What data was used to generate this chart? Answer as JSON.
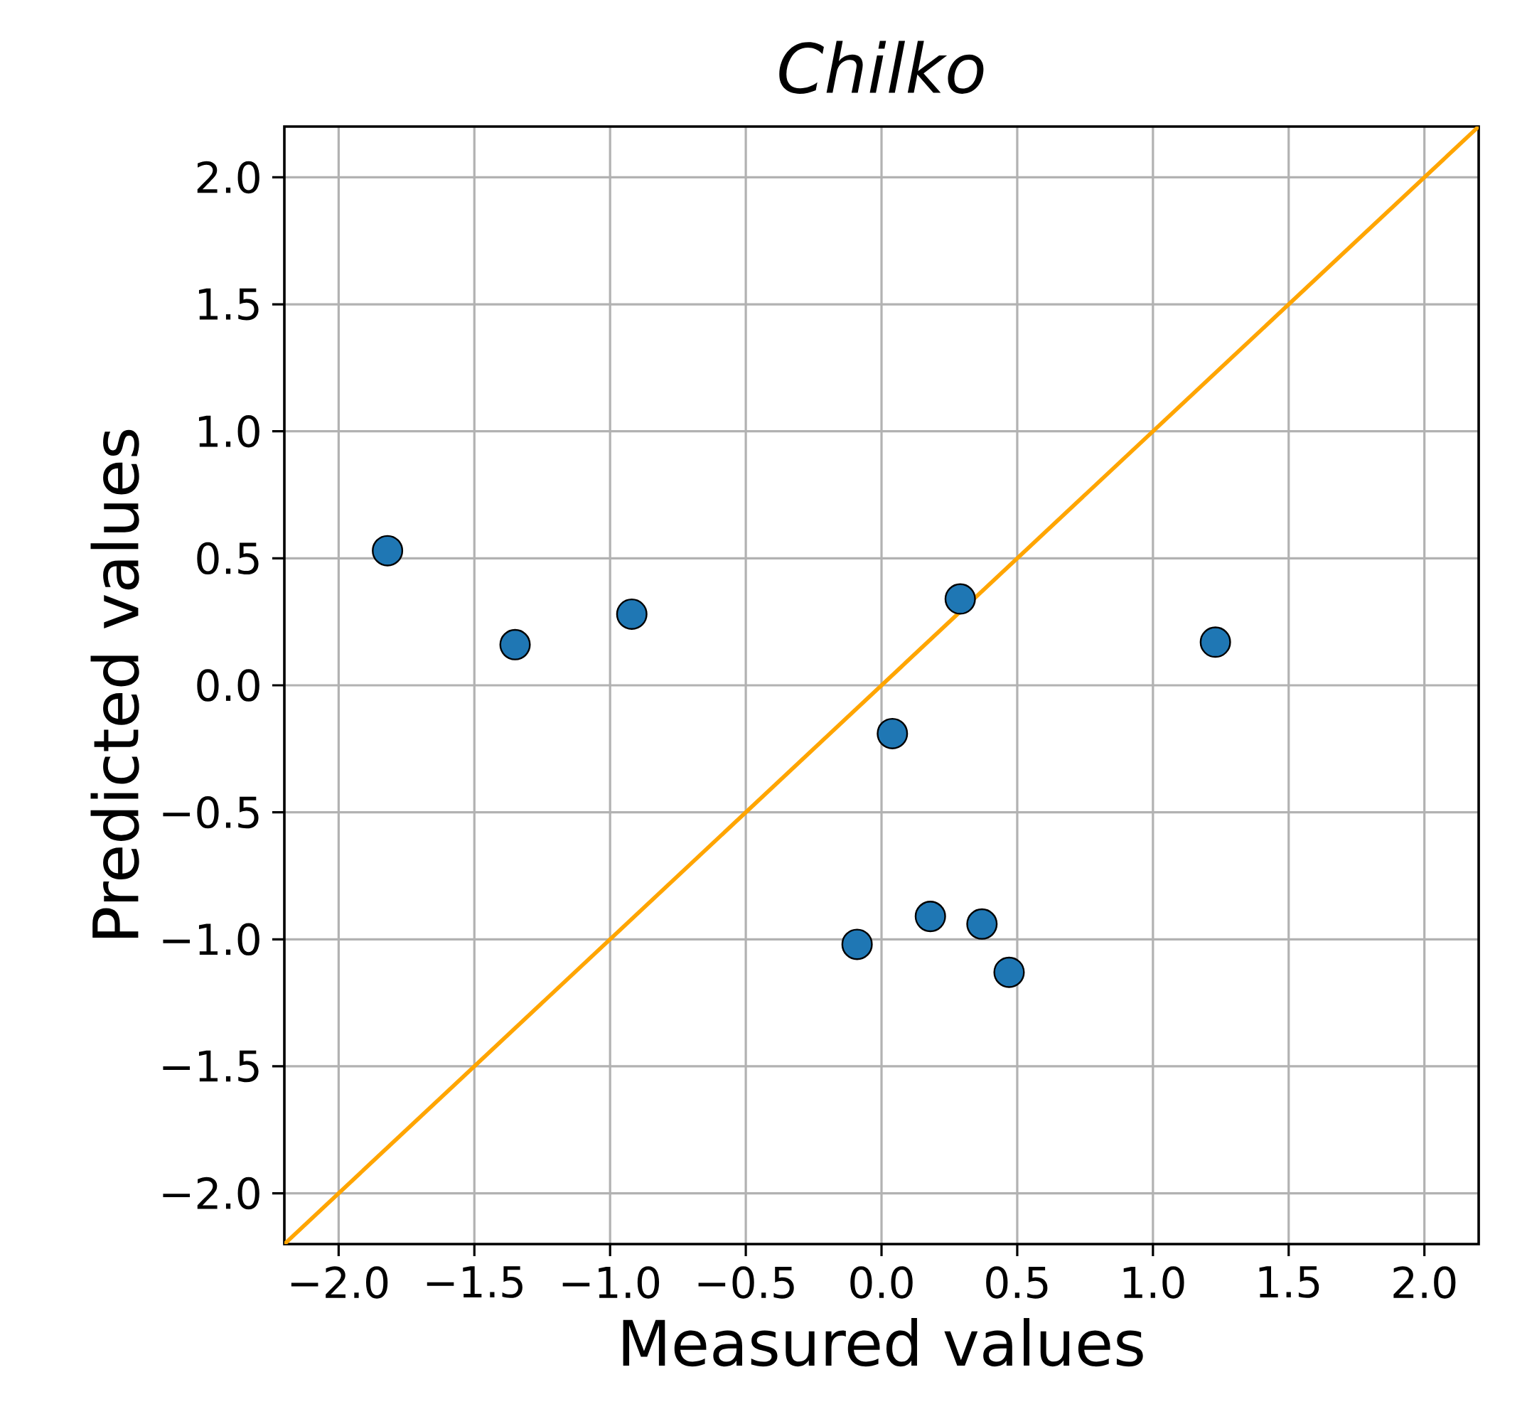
{
  "chart_data": {
    "type": "scatter",
    "title": "*Chilko*",
    "xlabel": "Measured values",
    "ylabel": "Predicted values",
    "xlim": [
      -2.2,
      2.2
    ],
    "ylim": [
      -2.2,
      2.2
    ],
    "xticks": [
      {
        "value": -2,
        "label": "−2.0"
      },
      {
        "value": -1.5,
        "label": "−1.5"
      },
      {
        "value": -1,
        "label": "−1.0"
      },
      {
        "value": -0.5,
        "label": "−0.5"
      },
      {
        "value": 0,
        "label": "0.0"
      },
      {
        "value": 0.5,
        "label": "0.5"
      },
      {
        "value": 1,
        "label": "1.0"
      },
      {
        "value": 1.5,
        "label": "1.5"
      },
      {
        "value": 2,
        "label": "2.0"
      }
    ],
    "yticks": [
      {
        "value": -2,
        "label": "−2.0"
      },
      {
        "value": -1.5,
        "label": "−1.5"
      },
      {
        "value": -1,
        "label": "−1.0"
      },
      {
        "value": -0.5,
        "label": "−0.5"
      },
      {
        "value": 0,
        "label": "0.0"
      },
      {
        "value": 0.5,
        "label": "0.5"
      },
      {
        "value": 1,
        "label": "1.0"
      },
      {
        "value": 1.5,
        "label": "1.5"
      },
      {
        "value": 2,
        "label": "2.0"
      }
    ],
    "grid": true,
    "series": [
      {
        "type": "line",
        "marker": "none",
        "color": "#ffa500",
        "x": [
          -2.2,
          2.2
        ],
        "values": [
          -2.2,
          2.2
        ]
      },
      {
        "marker": "circle",
        "color": "#1f77b4",
        "x": [
          -1.82,
          -1.35,
          -0.92,
          0.29,
          1.23,
          0.04,
          -0.09,
          0.18,
          0.37,
          0.47
        ],
        "values": [
          0.53,
          0.16,
          0.28,
          0.34,
          0.17,
          -0.19,
          -1.02,
          -0.91,
          -0.94,
          -1.13
        ]
      }
    ]
  }
}
